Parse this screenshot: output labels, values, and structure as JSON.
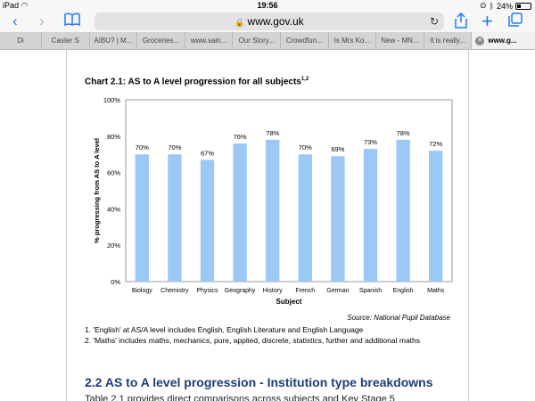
{
  "status": {
    "device": "iPad",
    "time": "19:56",
    "battery": "24%"
  },
  "toolbar": {
    "url": "www.gov.uk"
  },
  "tabs": [
    "Di",
    "Caster S",
    "AIBU? | M...",
    "Groceries...",
    "www.sain...",
    "Our Story...",
    "Crowdfun...",
    "Is Mrs Ko...",
    "New - MN...",
    "It is really...",
    "www.g..."
  ],
  "chart": {
    "title": "Chart 2.1: AS to A level progression for all subjects",
    "title_sup": "1,2"
  },
  "chart_data": {
    "type": "bar",
    "categories": [
      "Biology",
      "Chemistry",
      "Physics",
      "Geography",
      "History",
      "French",
      "German",
      "Spanish",
      "English",
      "Maths"
    ],
    "values": [
      70,
      70,
      67,
      76,
      78,
      70,
      69,
      73,
      78,
      72
    ],
    "data_labels": [
      "70%",
      "70%",
      "67%",
      "76%",
      "78%",
      "70%",
      "69%",
      "73%",
      "78%",
      "72%"
    ],
    "yticks": [
      "0%",
      "20%",
      "40%",
      "60%",
      "80%",
      "100%"
    ],
    "ylim": [
      0,
      100
    ],
    "xlabel": "Subject",
    "ylabel": "% progressing from AS to A level",
    "grid": false,
    "bar_color": "#9cc8f6"
  },
  "source": "Source: National Pupil Database",
  "notes": [
    "1. 'English' at AS/A level includes English, English Literature and English Language",
    "2. 'Maths' includes maths, mechanics, pure, applied, discrete, statistics, further and additional maths"
  ],
  "section_heading": "2.2 AS to A level progression - Institution type breakdowns",
  "paragraph": "Table 2.1 provides direct comparisons across subjects and Key Stage 5"
}
